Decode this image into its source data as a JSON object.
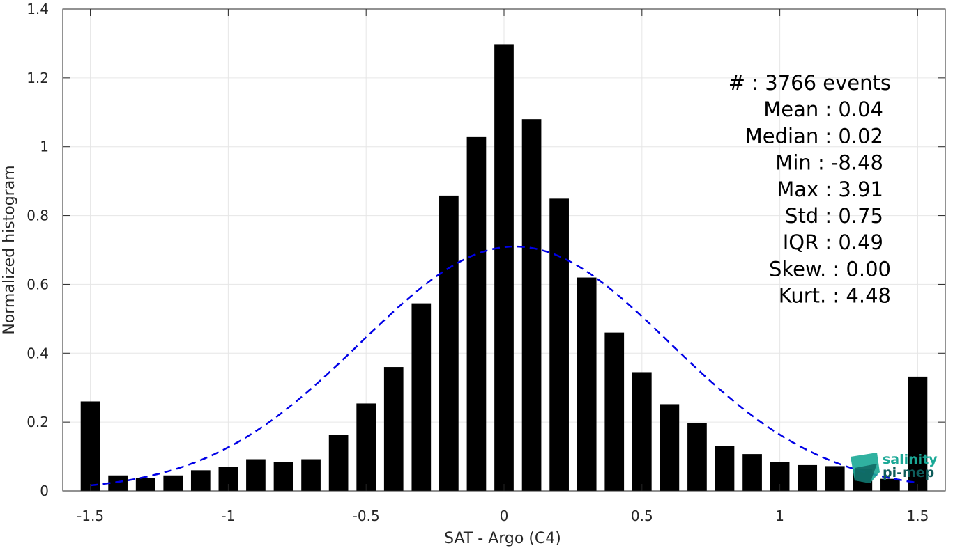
{
  "chart_data": {
    "type": "bar",
    "xlabel": "SAT - Argo (C4)",
    "ylabel": "Normalized histogram",
    "xlim": [
      -1.6,
      1.6
    ],
    "ylim": [
      0,
      1.4
    ],
    "xticks": [
      -1.5,
      -1,
      -0.5,
      0,
      0.5,
      1,
      1.5
    ],
    "xtick_labels": [
      "-1.5",
      "-1",
      "-0.5",
      "0",
      "0.5",
      "1",
      "1.5"
    ],
    "yticks": [
      0,
      0.2,
      0.4,
      0.6,
      0.8,
      1,
      1.2,
      1.4
    ],
    "ytick_labels": [
      "0",
      "0.2",
      "0.4",
      "0.6",
      "0.8",
      "1",
      "1.2",
      "1.4"
    ],
    "grid": true,
    "bar_width": 0.07,
    "bars": {
      "x": [
        -1.5,
        -1.4,
        -1.3,
        -1.2,
        -1.1,
        -1.0,
        -0.9,
        -0.8,
        -0.7,
        -0.6,
        -0.5,
        -0.4,
        -0.3,
        -0.2,
        -0.1,
        0.0,
        0.1,
        0.2,
        0.3,
        0.4,
        0.5,
        0.6,
        0.7,
        0.8,
        0.9,
        1.0,
        1.1,
        1.2,
        1.3,
        1.4,
        1.5
      ],
      "values": [
        0.26,
        0.045,
        0.037,
        0.045,
        0.06,
        0.07,
        0.092,
        0.084,
        0.092,
        0.162,
        0.254,
        0.36,
        0.545,
        0.858,
        1.028,
        1.298,
        1.08,
        0.849,
        0.62,
        0.46,
        0.345,
        0.252,
        0.197,
        0.13,
        0.107,
        0.084,
        0.075,
        0.072,
        0.063,
        0.035,
        0.332
      ],
      "color": "#000000"
    },
    "gaussian": {
      "mean": 0.04,
      "std": 0.56,
      "peak": 0.71,
      "x_range": [
        -1.5,
        1.5
      ],
      "color": "#0000e6",
      "style": "dashed"
    },
    "stats": [
      {
        "label": "#  : 3766 events",
        "anchor": "end",
        "right": 1278
      },
      {
        "label": "Mean : 0.04",
        "anchor": "end",
        "right": 1267
      },
      {
        "label": "Median : 0.02",
        "anchor": "end",
        "right": 1267
      },
      {
        "label": "Min : -8.48",
        "anchor": "end",
        "right": 1267
      },
      {
        "label": "Max : 3.91",
        "anchor": "end",
        "right": 1267
      },
      {
        "label": "Std : 0.75",
        "anchor": "end",
        "right": 1267
      },
      {
        "label": "IQR : 0.49",
        "anchor": "end",
        "right": 1267
      },
      {
        "label": "Skew. : 0.00",
        "anchor": "end",
        "right": 1278
      },
      {
        "label": "Kurt. : 4.48",
        "anchor": "end",
        "right": 1278
      }
    ]
  },
  "logo": {
    "line1": "salinity",
    "line2": "pi-mep",
    "colors": {
      "teal": "#1aa896",
      "dark": "#0e5c5a"
    }
  }
}
